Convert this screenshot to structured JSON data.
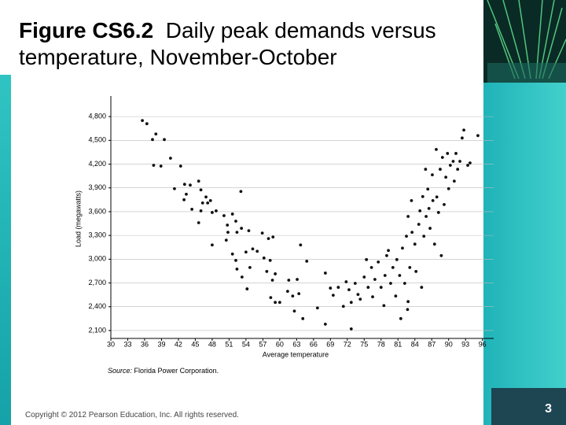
{
  "chart_data": {
    "type": "scatter",
    "title_label": "Figure CS6.2",
    "title": "Daily peak demands versus temperature, November-October",
    "xlabel": "Average temperature",
    "ylabel": "Load (megawatts)",
    "source_label": "Source:",
    "source": "Florida Power Corporation.",
    "xlim": [
      30,
      98
    ],
    "ylim": [
      2000,
      5000
    ],
    "xticks": [
      30,
      33,
      36,
      39,
      42,
      45,
      48,
      51,
      54,
      57,
      60,
      63,
      66,
      69,
      72,
      75,
      78,
      81,
      84,
      87,
      90,
      93,
      96
    ],
    "yticks": [
      {
        "value": 2100,
        "label": "2,100"
      },
      {
        "value": 2400,
        "label": "2,400"
      },
      {
        "value": 2700,
        "label": "2,700"
      },
      {
        "value": 3000,
        "label": "3,000"
      },
      {
        "value": 3300,
        "label": "3,300"
      },
      {
        "value": 3600,
        "label": "3,600"
      },
      {
        "value": 3900,
        "label": "3,900"
      },
      {
        "value": 4200,
        "label": "4,200"
      },
      {
        "value": 4500,
        "label": "4,500"
      },
      {
        "value": 4800,
        "label": "4,800"
      }
    ],
    "grid": true,
    "color": "#111111",
    "x": [
      35.6,
      36.4,
      38,
      37.4,
      39.5,
      37.6,
      38.9,
      40.6,
      42.4,
      41.3,
      43.1,
      44.1,
      43.4,
      43,
      45.6,
      46,
      46.9,
      46.3,
      47.2,
      47.7,
      44.4,
      46,
      48,
      45.6,
      48.7,
      50.1,
      51.6,
      52.2,
      50.7,
      50.8,
      50.5,
      48,
      52.4,
      53.2,
      54.5,
      53.1,
      51.6,
      52.2,
      54,
      55.2,
      56,
      52.4,
      53.3,
      54.7,
      54.2,
      56.9,
      58,
      58.8,
      57.2,
      58.3,
      57.7,
      59.2,
      58.7,
      58.4,
      59.2,
      60,
      61.6,
      61.4,
      62.3,
      63.1,
      62.6,
      63.4,
      64.1,
      63.7,
      64.8,
      66.7,
      68.1,
      68.1,
      69,
      69.5,
      70.4,
      71.3,
      71.8,
      72.3,
      72.7,
      72.7,
      73.4,
      73.9,
      74.3,
      75,
      75.4,
      75.7,
      76.3,
      76.5,
      76.9,
      77.5,
      78,
      78.5,
      78.7,
      79,
      79.3,
      79.7,
      80.1,
      80.6,
      80.8,
      81.3,
      81.5,
      81.8,
      82.2,
      82.5,
      82.8,
      82.8,
      83.1,
      83.4,
      83.5,
      84,
      84.2,
      84.7,
      84.9,
      85.2,
      85.4,
      85.6,
      85.9,
      86,
      86.3,
      86.5,
      86.7,
      87.1,
      87.2,
      87.5,
      87.8,
      87.9,
      88.2,
      88.5,
      88.7,
      88.9,
      89.2,
      89.5,
      89.8,
      90,
      90.3,
      90.8,
      91,
      91.3,
      91.6,
      92,
      92.4,
      92.7,
      93.4,
      93.8,
      95.2,
      82.7
    ],
    "values": [
      4750,
      4710,
      4580,
      4510,
      4510,
      4185,
      4175,
      4275,
      4175,
      3890,
      3945,
      3935,
      3820,
      3750,
      3985,
      3875,
      3785,
      3710,
      3710,
      3740,
      3630,
      3610,
      3590,
      3460,
      3610,
      3550,
      3570,
      3480,
      3430,
      3340,
      3240,
      3180,
      3340,
      3390,
      3360,
      3855,
      3065,
      2985,
      3090,
      3130,
      3100,
      2875,
      2775,
      2895,
      2625,
      3330,
      3260,
      3280,
      3015,
      2985,
      2845,
      2815,
      2735,
      2515,
      2455,
      2455,
      2735,
      2595,
      2535,
      2745,
      2345,
      2565,
      2250,
      3180,
      2975,
      2385,
      2825,
      2180,
      2635,
      2545,
      2645,
      2405,
      2715,
      2615,
      2455,
      2120,
      2695,
      2555,
      2495,
      2775,
      2995,
      2645,
      2895,
      2525,
      2745,
      2965,
      2645,
      2415,
      2795,
      3045,
      3110,
      2695,
      2895,
      2535,
      2995,
      2795,
      2250,
      3140,
      2695,
      3290,
      2465,
      3540,
      2895,
      3740,
      3340,
      3190,
      2845,
      3440,
      3610,
      2645,
      3790,
      3290,
      4135,
      3540,
      3885,
      3640,
      3390,
      4065,
      3740,
      3190,
      4385,
      3785,
      3590,
      4135,
      3045,
      4285,
      3690,
      4035,
      4335,
      3890,
      4185,
      4235,
      3985,
      4335,
      4135,
      4235,
      4530,
      4630,
      4185,
      4215,
      4560,
      2365
    ]
  },
  "copyright": "Copyright © 2012 Pearson Education, Inc. All rights reserved.",
  "page_number": "3"
}
